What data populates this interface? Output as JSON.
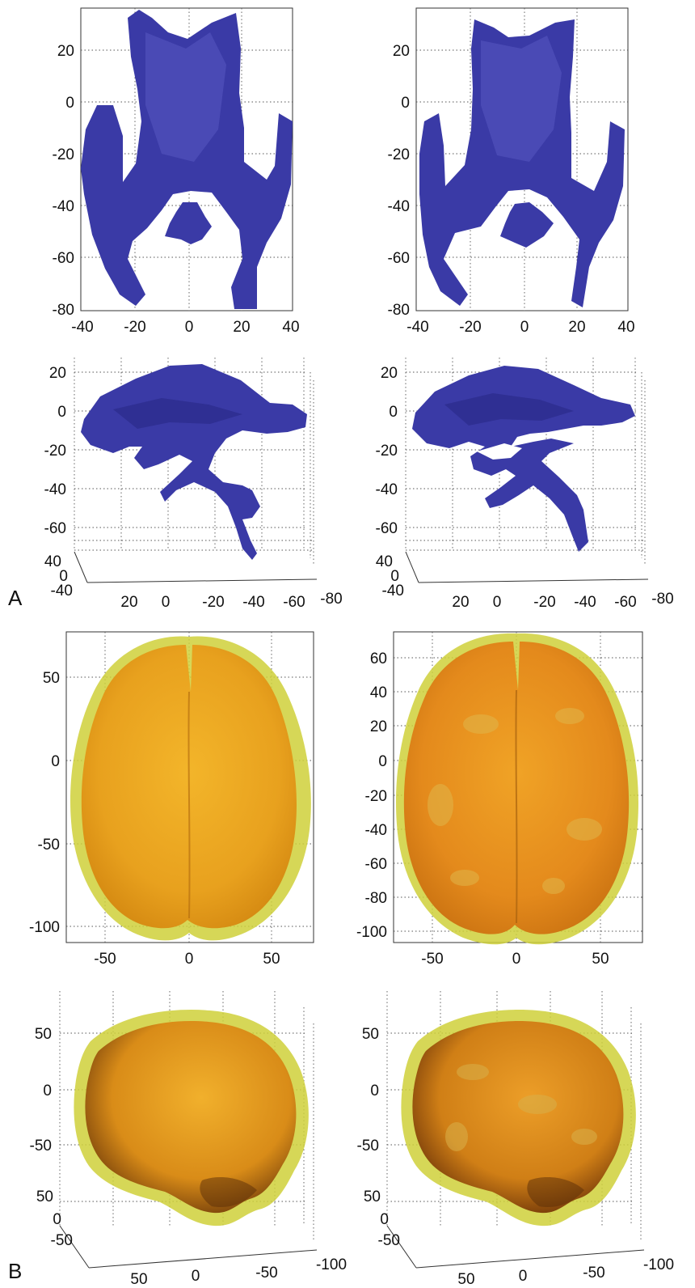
{
  "figure": {
    "section_a_label": "A",
    "section_b_label": "B"
  },
  "colors": {
    "ventricle": "#3a3aa6",
    "ventricle_highlight": "#5a5ac4",
    "brain_core": "#e89a1e",
    "brain_shell": "#cfd03a",
    "grid": "#555555"
  },
  "panels": {
    "a_axial_left": {
      "view": "axial",
      "structure": "ventricles",
      "yticks": [
        "20",
        "0",
        "-20",
        "-40",
        "-60",
        "-80"
      ],
      "xticks": [
        "-40",
        "-20",
        "0",
        "20",
        "40"
      ]
    },
    "a_axial_right": {
      "view": "axial",
      "structure": "ventricles",
      "yticks": [
        "20",
        "0",
        "-20",
        "-40",
        "-60",
        "-80"
      ],
      "xticks": [
        "-40",
        "-20",
        "0",
        "20",
        "40"
      ]
    },
    "a_lateral_left": {
      "view": "3d-lateral",
      "structure": "ventricles",
      "zticks": [
        "20",
        "0",
        "-20",
        "-40",
        "-60"
      ],
      "xticks": [
        "40",
        "0",
        "-40"
      ],
      "yticks": [
        "20",
        "0",
        "-20",
        "-40",
        "-60",
        "-80"
      ]
    },
    "a_lateral_right": {
      "view": "3d-lateral",
      "structure": "ventricles",
      "zticks": [
        "20",
        "0",
        "-20",
        "-40",
        "-60"
      ],
      "xticks": [
        "40",
        "0",
        "-40"
      ],
      "yticks": [
        "20",
        "0",
        "-20",
        "-40",
        "-60",
        "-80"
      ]
    },
    "b_axial_left": {
      "view": "axial",
      "structure": "brain surface",
      "yticks": [
        "50",
        "0",
        "-50",
        "-100"
      ],
      "xticks": [
        "-50",
        "0",
        "50"
      ]
    },
    "b_axial_right": {
      "view": "axial",
      "structure": "brain surface",
      "yticks": [
        "60",
        "40",
        "20",
        "0",
        "-20",
        "-40",
        "-60",
        "-80",
        "-100"
      ],
      "xticks": [
        "-50",
        "0",
        "50"
      ]
    },
    "b_lateral_left": {
      "view": "3d-lateral",
      "structure": "brain surface",
      "zticks": [
        "50",
        "0",
        "-50"
      ],
      "xticks": [
        "50",
        "0",
        "-50"
      ],
      "yticks": [
        "50",
        "0",
        "-50",
        "-100"
      ]
    },
    "b_lateral_right": {
      "view": "3d-lateral",
      "structure": "brain surface",
      "zticks": [
        "50",
        "0",
        "-50"
      ],
      "xticks": [
        "50",
        "0",
        "-50"
      ],
      "yticks": [
        "50",
        "0",
        "-50",
        "-100"
      ]
    }
  }
}
